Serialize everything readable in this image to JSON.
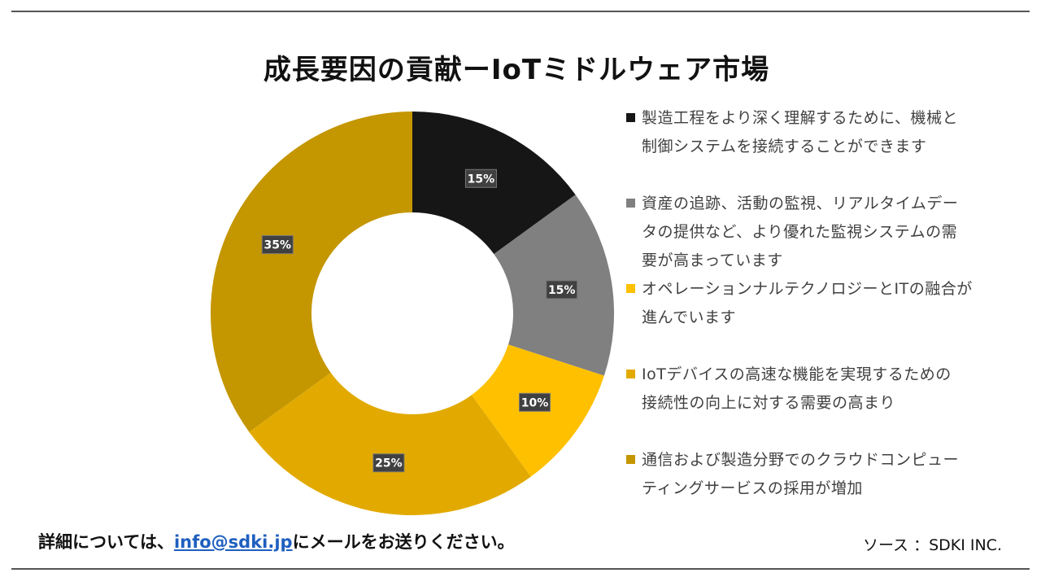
{
  "header": {
    "title": "成長要因の貢献ーIoTミドルウェア市場"
  },
  "colors": {
    "rule": "#555555",
    "link": "#1f5fbf"
  },
  "chart_data": {
    "type": "pie",
    "donut": true,
    "legend_position": "right",
    "series": [
      {
        "name": "製造工程をより深く理解するために、機械と制御システムを接続することができます",
        "value": 15,
        "label": "15%",
        "color": "#161616"
      },
      {
        "name": "資産の追跡、活動の監視、リアルタイムデータの提供など、より優れた監視システムの需要が高まっています",
        "value": 15,
        "label": "15%",
        "color": "#808080"
      },
      {
        "name": "オペレーションナルテクノロジーとITの融合が進んでいます",
        "value": 10,
        "label": "10%",
        "color": "#FFC000"
      },
      {
        "name": "IoTデバイスの高速な機能を実現するための接続性の向上に対する需要の高まり",
        "value": 25,
        "label": "25%",
        "color": "#E2AA00"
      },
      {
        "name": "通信および製造分野でのクラウドコンピューティングサービスの採用が増加",
        "value": 35,
        "label": "35%",
        "color": "#C49600"
      }
    ]
  },
  "legend": {
    "items": [
      {
        "lines": [
          "製造工程をより深く理解するために、機械と",
          "制御システムを接続することができます"
        ]
      },
      {
        "lines": [
          "資産の追跡、活動の監視、リアルタイムデー",
          "タの提供など、より優れた監視システムの需",
          "要が高まっています"
        ]
      },
      {
        "lines": [
          "オペレーションナルテクノロジーとITの融合が",
          "進んでいます"
        ]
      },
      {
        "lines": [
          "IoTデバイスの高速な機能を実現するための",
          "接続性の向上に対する需要の高まり"
        ]
      },
      {
        "lines": [
          "通信および製造分野でのクラウドコンピュー",
          "ティングサービスの採用が増加"
        ]
      }
    ]
  },
  "footer": {
    "prefix": "詳細については、",
    "email": "info@sdki.jp",
    "suffix": "にメールをお送りください。",
    "source": "ソース ：SDKI INC."
  }
}
